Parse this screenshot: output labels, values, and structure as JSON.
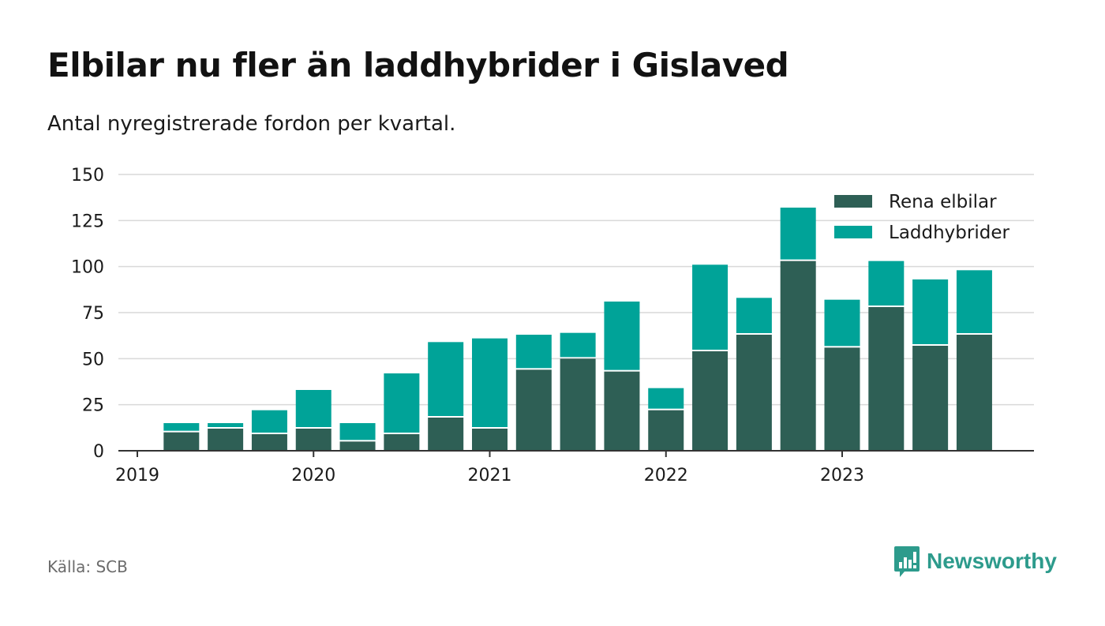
{
  "title": "Elbilar nu fler än laddhybrider i Gislaved",
  "subtitle": "Antal nyregistrerade fordon per kvartal.",
  "source": "Källa: SCB",
  "brand": {
    "name": "Newsworthy",
    "color": "#2d9b8c"
  },
  "colors": {
    "elbilar": "#2e5f55",
    "laddhybrider": "#00a398",
    "grid": "#d9d9d9",
    "axis": "#333333"
  },
  "chart_data": {
    "type": "bar",
    "stacked": true,
    "title": "Elbilar nu fler än laddhybrider i Gislaved",
    "subtitle": "Antal nyregistrerade fordon per kvartal.",
    "xlabel": "",
    "ylabel": "",
    "ylim": [
      0,
      150
    ],
    "yticks": [
      0,
      25,
      50,
      75,
      100,
      125,
      150
    ],
    "xtick_labels": [
      "2019",
      "2020",
      "2021",
      "2022",
      "2023"
    ],
    "categories": [
      "2019 Q2",
      "2019 Q3",
      "2019 Q4",
      "2020 Q1",
      "2020 Q2",
      "2020 Q3",
      "2020 Q4",
      "2021 Q1",
      "2021 Q2",
      "2021 Q3",
      "2021 Q4",
      "2022 Q1",
      "2022 Q2",
      "2022 Q3",
      "2022 Q4",
      "2023 Q1",
      "2023 Q2",
      "2023 Q3",
      "2023 Q4"
    ],
    "grid": true,
    "legend_position": "top-right",
    "series": [
      {
        "name": "Rena elbilar",
        "values": [
          10,
          12,
          9,
          12,
          5,
          9,
          18,
          12,
          44,
          50,
          43,
          22,
          54,
          63,
          103,
          56,
          78,
          57,
          63
        ]
      },
      {
        "name": "Laddhybrider",
        "values": [
          5,
          3,
          13,
          21,
          10,
          33,
          41,
          49,
          19,
          14,
          38,
          12,
          47,
          20,
          29,
          26,
          25,
          36,
          35
        ]
      }
    ]
  }
}
